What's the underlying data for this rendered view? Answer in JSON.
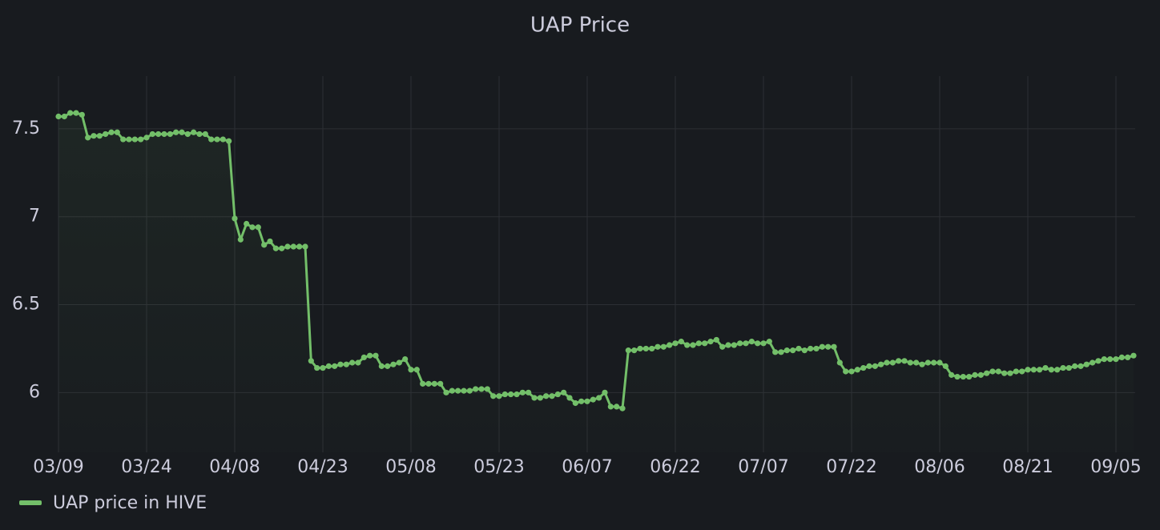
{
  "chart_data": {
    "type": "line",
    "title": "UAP Price",
    "x": [
      "03/09",
      null,
      null,
      null,
      null,
      null,
      null,
      null,
      null,
      null,
      null,
      null,
      null,
      null,
      null,
      "03/24",
      null,
      null,
      null,
      null,
      null,
      null,
      null,
      null,
      null,
      null,
      null,
      null,
      null,
      null,
      "04/08",
      null,
      null,
      null,
      null,
      null,
      null,
      null,
      null,
      null,
      null,
      null,
      null,
      null,
      null,
      "04/23",
      null,
      null,
      null,
      null,
      null,
      null,
      null,
      null,
      null,
      null,
      null,
      null,
      null,
      null,
      "05/08",
      null,
      null,
      null,
      null,
      null,
      null,
      null,
      null,
      null,
      null,
      null,
      null,
      null,
      null,
      "05/23",
      null,
      null,
      null,
      null,
      null,
      null,
      null,
      null,
      null,
      null,
      null,
      null,
      null,
      null,
      "06/07",
      null,
      null,
      null,
      null,
      null,
      null,
      null,
      null,
      null,
      null,
      null,
      null,
      null,
      null,
      "06/22",
      null,
      null,
      null,
      null,
      null,
      null,
      null,
      null,
      null,
      null,
      null,
      null,
      null,
      null,
      "07/07",
      null,
      null,
      null,
      null,
      null,
      null,
      null,
      null,
      null,
      null,
      null,
      null,
      null,
      null,
      "07/22",
      null,
      null,
      null,
      null,
      null,
      null,
      null,
      null,
      null,
      null,
      null,
      null,
      null,
      null,
      "08/06",
      null,
      null,
      null,
      null,
      null,
      null,
      null,
      null,
      null,
      null,
      null,
      null,
      null,
      null,
      "08/21",
      null,
      null,
      null,
      null,
      null,
      null,
      null,
      null,
      null,
      null,
      null,
      null,
      null,
      null,
      "09/05",
      null,
      null,
      null
    ],
    "series": [
      {
        "name": "UAP price in HIVE",
        "color": "#73bf69",
        "values": [
          7.57,
          7.57,
          7.59,
          7.59,
          7.58,
          7.45,
          7.46,
          7.46,
          7.47,
          7.48,
          7.48,
          7.44,
          7.44,
          7.44,
          7.44,
          7.45,
          7.47,
          7.47,
          7.47,
          7.47,
          7.48,
          7.48,
          7.47,
          7.48,
          7.47,
          7.47,
          7.44,
          7.44,
          7.44,
          7.43,
          6.99,
          6.87,
          6.96,
          6.94,
          6.94,
          6.84,
          6.86,
          6.82,
          6.82,
          6.83,
          6.83,
          6.83,
          6.83,
          6.18,
          6.14,
          6.14,
          6.15,
          6.15,
          6.16,
          6.16,
          6.17,
          6.17,
          6.2,
          6.21,
          6.21,
          6.15,
          6.15,
          6.16,
          6.17,
          6.19,
          6.13,
          6.13,
          6.05,
          6.05,
          6.05,
          6.05,
          6.0,
          6.01,
          6.01,
          6.01,
          6.01,
          6.02,
          6.02,
          6.02,
          5.98,
          5.98,
          5.99,
          5.99,
          5.99,
          6.0,
          6.0,
          5.97,
          5.97,
          5.98,
          5.98,
          5.99,
          6.0,
          5.97,
          5.94,
          5.95,
          5.95,
          5.96,
          5.97,
          6.0,
          5.92,
          5.92,
          5.91,
          6.24,
          6.24,
          6.25,
          6.25,
          6.25,
          6.26,
          6.26,
          6.27,
          6.28,
          6.29,
          6.27,
          6.27,
          6.28,
          6.28,
          6.29,
          6.3,
          6.26,
          6.27,
          6.27,
          6.28,
          6.28,
          6.29,
          6.28,
          6.28,
          6.29,
          6.23,
          6.23,
          6.24,
          6.24,
          6.25,
          6.24,
          6.25,
          6.25,
          6.26,
          6.26,
          6.26,
          6.17,
          6.12,
          6.12,
          6.13,
          6.14,
          6.15,
          6.15,
          6.16,
          6.17,
          6.17,
          6.18,
          6.18,
          6.17,
          6.17,
          6.16,
          6.17,
          6.17,
          6.17,
          6.15,
          6.1,
          6.09,
          6.09,
          6.09,
          6.1,
          6.1,
          6.11,
          6.12,
          6.12,
          6.11,
          6.11,
          6.12,
          6.12,
          6.13,
          6.13,
          6.13,
          6.14,
          6.13,
          6.13,
          6.14,
          6.14,
          6.15,
          6.15,
          6.16,
          6.17,
          6.18,
          6.19,
          6.19,
          6.19,
          6.2,
          6.2,
          6.21
        ]
      }
    ],
    "ylim": [
      5.66,
      7.8
    ],
    "yticks": [
      6,
      6.5,
      7,
      7.5
    ],
    "grid": true,
    "legend": "bottom-left"
  }
}
